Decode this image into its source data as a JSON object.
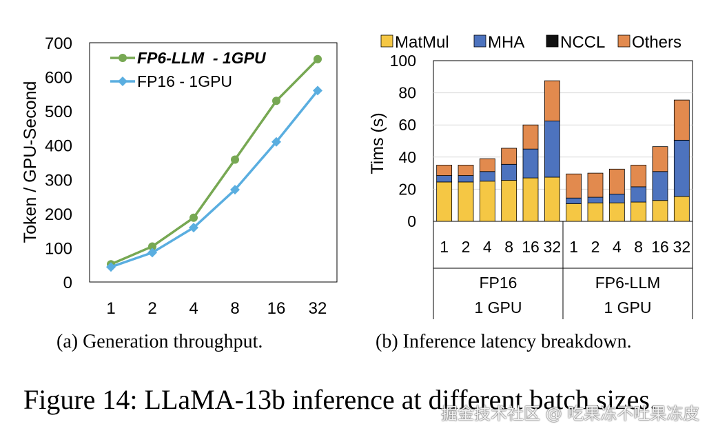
{
  "colors": {
    "fp6": "#77a853",
    "fp16": "#5aaee0",
    "matmul": "#f5c744",
    "mha": "#4d73be",
    "nccl": "#111111",
    "others": "#e28a4e"
  },
  "chart_data": [
    {
      "type": "line",
      "title": "",
      "xlabel": "",
      "ylabel": "Token / GPU-Second",
      "categories": [
        "1",
        "2",
        "4",
        "8",
        "16",
        "32"
      ],
      "ylim": [
        0,
        700
      ],
      "yticks": [
        "0",
        "100",
        "200",
        "300",
        "400",
        "500",
        "600",
        "700"
      ],
      "series": [
        {
          "name": "FP6-LLM  - 1GPU",
          "values": [
            52,
            104,
            188,
            358,
            530,
            652
          ]
        },
        {
          "name": "FP16 - 1GPU",
          "values": [
            44,
            86,
            159,
            270,
            410,
            560
          ]
        }
      ]
    },
    {
      "type": "bar",
      "stacked": true,
      "title": "",
      "ylabel": "Tims (s)",
      "ylim": [
        0,
        100
      ],
      "yticks": [
        "0",
        "20",
        "40",
        "60",
        "80",
        "100"
      ],
      "legend": [
        "MatMul",
        "MHA",
        "NCCL",
        "Others"
      ],
      "groups": [
        {
          "name": "FP16",
          "sub": "1 GPU",
          "categories": [
            "1",
            "2",
            "4",
            "8",
            "16",
            "32"
          ]
        },
        {
          "name": "FP6-LLM",
          "sub": "1 GPU",
          "categories": [
            "1",
            "2",
            "4",
            "8",
            "16",
            "32"
          ]
        }
      ],
      "series": [
        {
          "name": "MatMul",
          "values": [
            24.5,
            24.5,
            25,
            25.5,
            27,
            27.5,
            11,
            11.5,
            11.5,
            12,
            13,
            15.5
          ]
        },
        {
          "name": "MHA",
          "values": [
            4,
            4,
            6,
            10,
            18,
            35,
            3.5,
            3.5,
            5.5,
            9.5,
            18,
            35
          ]
        },
        {
          "name": "NCCL",
          "values": [
            0,
            0,
            0,
            0,
            0,
            0,
            0,
            0,
            0,
            0,
            0,
            0
          ]
        },
        {
          "name": "Others",
          "values": [
            6.5,
            6.5,
            8,
            10,
            15,
            25,
            15,
            15,
            15.5,
            13.5,
            15.5,
            25
          ]
        }
      ]
    }
  ],
  "captions": {
    "a": "(a) Generation throughput.",
    "b": "(b) Inference latency breakdown.",
    "figure": "Figure 14: LLaMA-13b inference at different batch sizes."
  },
  "watermark": "掘金技术社区 @ 吃果冻不吐果冻皮"
}
